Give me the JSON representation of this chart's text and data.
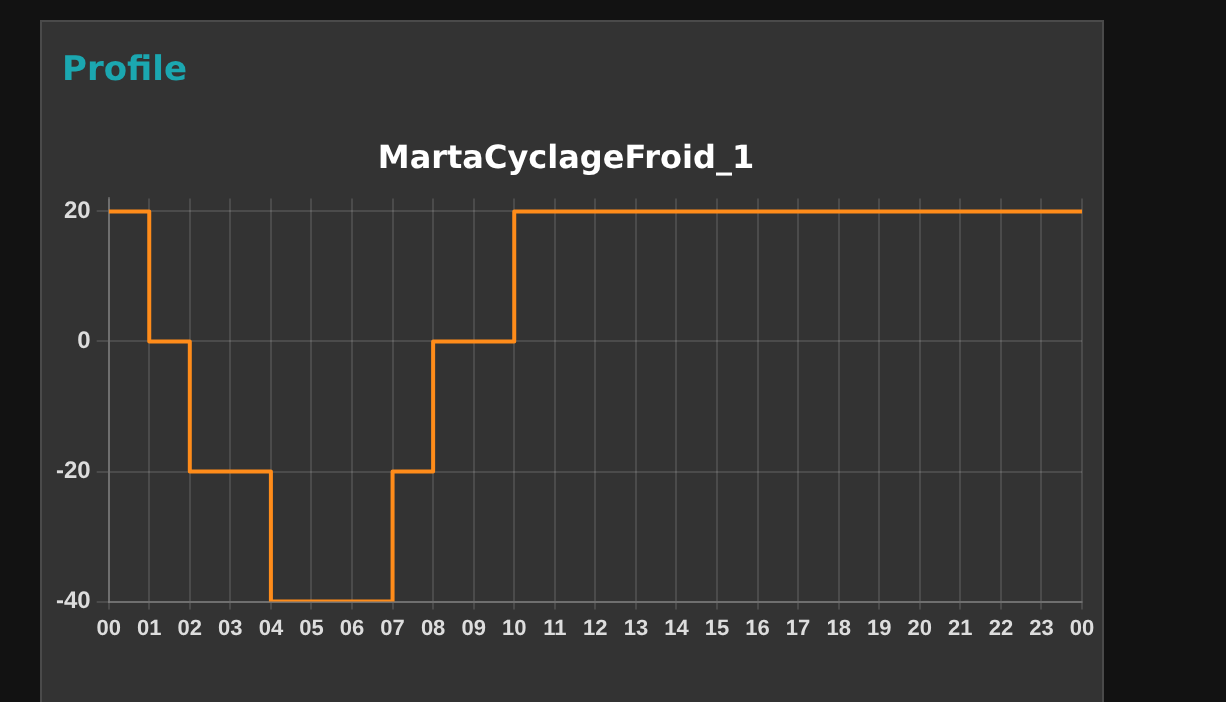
{
  "chart_data": {
    "type": "step",
    "title": "Profile",
    "subtitle": "MartaCyclageFroid_1",
    "x": [
      0,
      1,
      2,
      4,
      7,
      8,
      10,
      24
    ],
    "series": [
      {
        "color": "#ff8c1a",
        "values": [
          20,
          0,
          -20,
          -40,
          -20,
          0,
          20,
          20
        ]
      }
    ],
    "xlim": [
      0,
      24
    ],
    "xticks": [
      {
        "value": 0,
        "label": "00"
      },
      {
        "value": 1,
        "label": "01"
      },
      {
        "value": 2,
        "label": "02"
      },
      {
        "value": 3,
        "label": "03"
      },
      {
        "value": 4,
        "label": "04"
      },
      {
        "value": 5,
        "label": "05"
      },
      {
        "value": 6,
        "label": "06"
      },
      {
        "value": 7,
        "label": "07"
      },
      {
        "value": 8,
        "label": "08"
      },
      {
        "value": 9,
        "label": "09"
      },
      {
        "value": 10,
        "label": "10"
      },
      {
        "value": 11,
        "label": "11"
      },
      {
        "value": 12,
        "label": "12"
      },
      {
        "value": 13,
        "label": "13"
      },
      {
        "value": 14,
        "label": "14"
      },
      {
        "value": 15,
        "label": "15"
      },
      {
        "value": 16,
        "label": "16"
      },
      {
        "value": 17,
        "label": "17"
      },
      {
        "value": 18,
        "label": "18"
      },
      {
        "value": 19,
        "label": "19"
      },
      {
        "value": 20,
        "label": "20"
      },
      {
        "value": 21,
        "label": "21"
      },
      {
        "value": 22,
        "label": "22"
      },
      {
        "value": 23,
        "label": "23"
      },
      {
        "value": 24,
        "label": "00"
      }
    ],
    "ylim": [
      -40,
      22
    ],
    "yticks": [
      -40,
      -20,
      0,
      20
    ],
    "grid": true,
    "legend": false,
    "marker": "none",
    "line_style": "solid"
  }
}
